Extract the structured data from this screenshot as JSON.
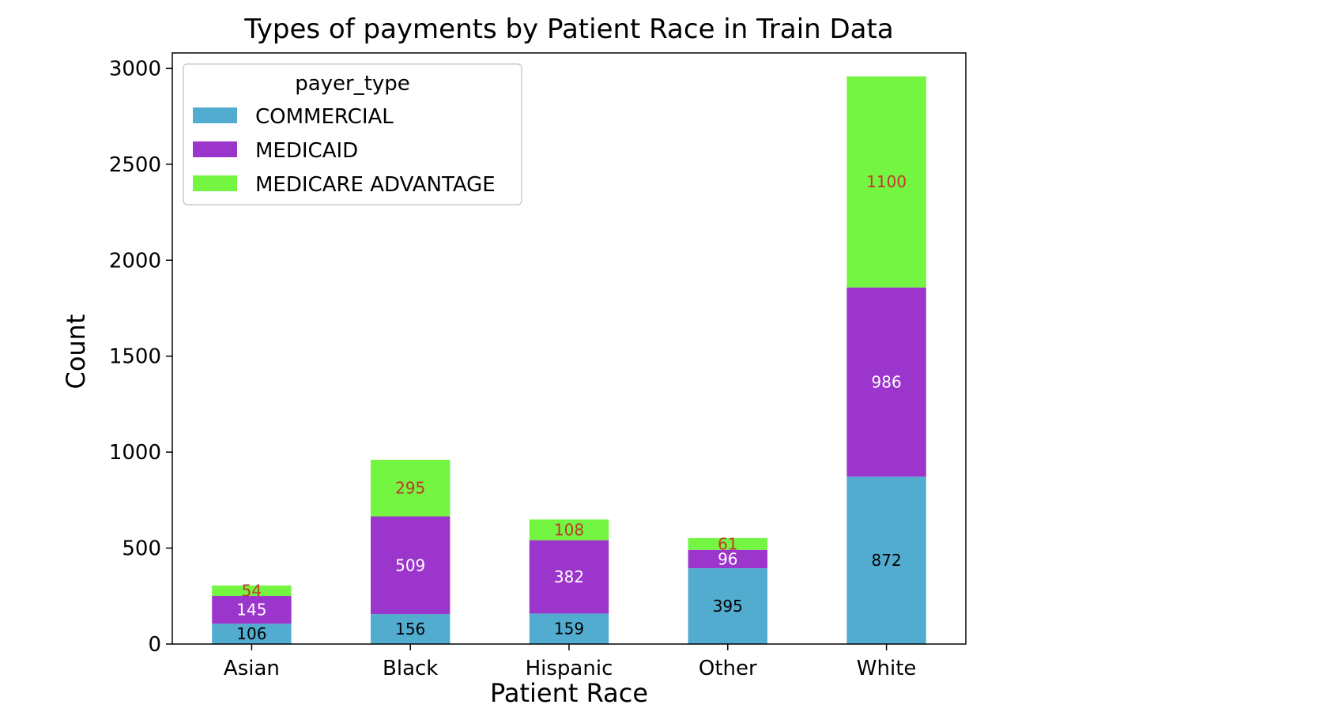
{
  "chart_data": {
    "type": "bar",
    "stacked": true,
    "title": "Types of payments by Patient Race in Train Data",
    "xlabel": "Patient Race",
    "ylabel": "Count",
    "categories": [
      "Asian",
      "Black",
      "Hispanic",
      "Other",
      "White"
    ],
    "ylim": [
      0,
      3080
    ],
    "yticks": [
      0,
      500,
      1000,
      1500,
      2000,
      2500,
      3000
    ],
    "grid": false,
    "legend": {
      "title": "payer_type",
      "position": "top-left"
    },
    "series": [
      {
        "name": "COMMERCIAL",
        "color": "#52acd0",
        "label_color": "#000000",
        "values": [
          106,
          156,
          159,
          395,
          872
        ]
      },
      {
        "name": "MEDICAID",
        "color": "#9b35cc",
        "label_color": "#ffffff",
        "values": [
          145,
          509,
          382,
          96,
          986
        ]
      },
      {
        "name": "MEDICARE ADVANTAGE",
        "color": "#73f542",
        "label_color": "#c0392b",
        "values": [
          54,
          295,
          108,
          61,
          1100
        ]
      }
    ]
  }
}
